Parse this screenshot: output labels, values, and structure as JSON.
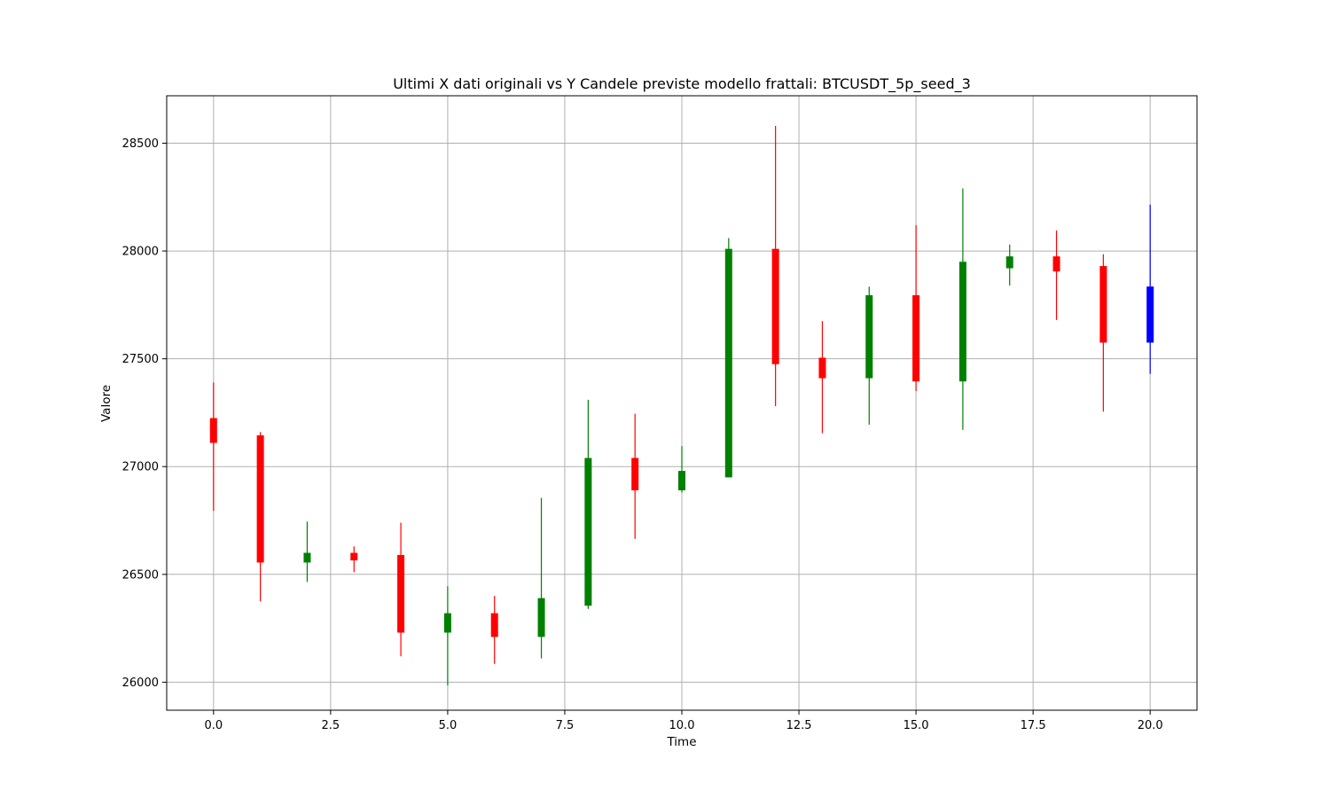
{
  "chart_data": {
    "type": "candlestick",
    "title": "Ultimi X dati originali vs Y Candele previste modello frattali: BTCUSDT_5p_seed_3",
    "xlabel": "Time",
    "ylabel": "Valore",
    "xlim": [
      -1,
      21
    ],
    "ylim": [
      25870,
      28720
    ],
    "xticks": [
      0.0,
      2.5,
      5.0,
      7.5,
      10.0,
      12.5,
      15.0,
      17.5,
      20.0
    ],
    "xtick_labels": [
      "0.0",
      "2.5",
      "5.0",
      "7.5",
      "10.0",
      "12.5",
      "15.0",
      "17.5",
      "20.0"
    ],
    "yticks": [
      26000,
      26500,
      27000,
      27500,
      28000,
      28500
    ],
    "ytick_labels": [
      "26000",
      "26500",
      "27000",
      "27500",
      "28000",
      "28500"
    ],
    "grid": true,
    "colors": {
      "up": "#008000",
      "down": "#ff0000",
      "predicted": "#0000ff"
    },
    "candles": [
      {
        "x": 0,
        "open": 27225,
        "high": 27390,
        "low": 26795,
        "close": 27110,
        "kind": "down"
      },
      {
        "x": 1,
        "open": 27145,
        "high": 27160,
        "low": 26375,
        "close": 26555,
        "kind": "down"
      },
      {
        "x": 2,
        "open": 26555,
        "high": 26745,
        "low": 26465,
        "close": 26600,
        "kind": "up"
      },
      {
        "x": 3,
        "open": 26600,
        "high": 26630,
        "low": 26510,
        "close": 26565,
        "kind": "down"
      },
      {
        "x": 4,
        "open": 26590,
        "high": 26740,
        "low": 26120,
        "close": 26230,
        "kind": "down"
      },
      {
        "x": 5,
        "open": 26230,
        "high": 26445,
        "low": 25985,
        "close": 26320,
        "kind": "up"
      },
      {
        "x": 6,
        "open": 26320,
        "high": 26400,
        "low": 26085,
        "close": 26210,
        "kind": "down"
      },
      {
        "x": 7,
        "open": 26210,
        "high": 26855,
        "low": 26110,
        "close": 26390,
        "kind": "up"
      },
      {
        "x": 8,
        "open": 26355,
        "high": 27310,
        "low": 26340,
        "close": 27040,
        "kind": "up"
      },
      {
        "x": 9,
        "open": 27040,
        "high": 27245,
        "low": 26665,
        "close": 26890,
        "kind": "down"
      },
      {
        "x": 10,
        "open": 26890,
        "high": 27095,
        "low": 26880,
        "close": 26980,
        "kind": "up"
      },
      {
        "x": 11,
        "open": 26950,
        "high": 28060,
        "low": 26950,
        "close": 28010,
        "kind": "up"
      },
      {
        "x": 12,
        "open": 28010,
        "high": 28580,
        "low": 27280,
        "close": 27475,
        "kind": "down"
      },
      {
        "x": 13,
        "open": 27505,
        "high": 27675,
        "low": 27155,
        "close": 27410,
        "kind": "down"
      },
      {
        "x": 14,
        "open": 27410,
        "high": 27835,
        "low": 27195,
        "close": 27795,
        "kind": "up"
      },
      {
        "x": 15,
        "open": 27795,
        "high": 28120,
        "low": 27350,
        "close": 27395,
        "kind": "down"
      },
      {
        "x": 16,
        "open": 27395,
        "high": 28290,
        "low": 27170,
        "close": 27950,
        "kind": "up"
      },
      {
        "x": 17,
        "open": 27920,
        "high": 28030,
        "low": 27840,
        "close": 27975,
        "kind": "up"
      },
      {
        "x": 18,
        "open": 27975,
        "high": 28095,
        "low": 27680,
        "close": 27905,
        "kind": "down"
      },
      {
        "x": 19,
        "open": 27930,
        "high": 27985,
        "low": 27255,
        "close": 27575,
        "kind": "down"
      },
      {
        "x": 20,
        "open": 27835,
        "high": 28215,
        "low": 27430,
        "close": 27575,
        "kind": "predicted"
      }
    ]
  }
}
